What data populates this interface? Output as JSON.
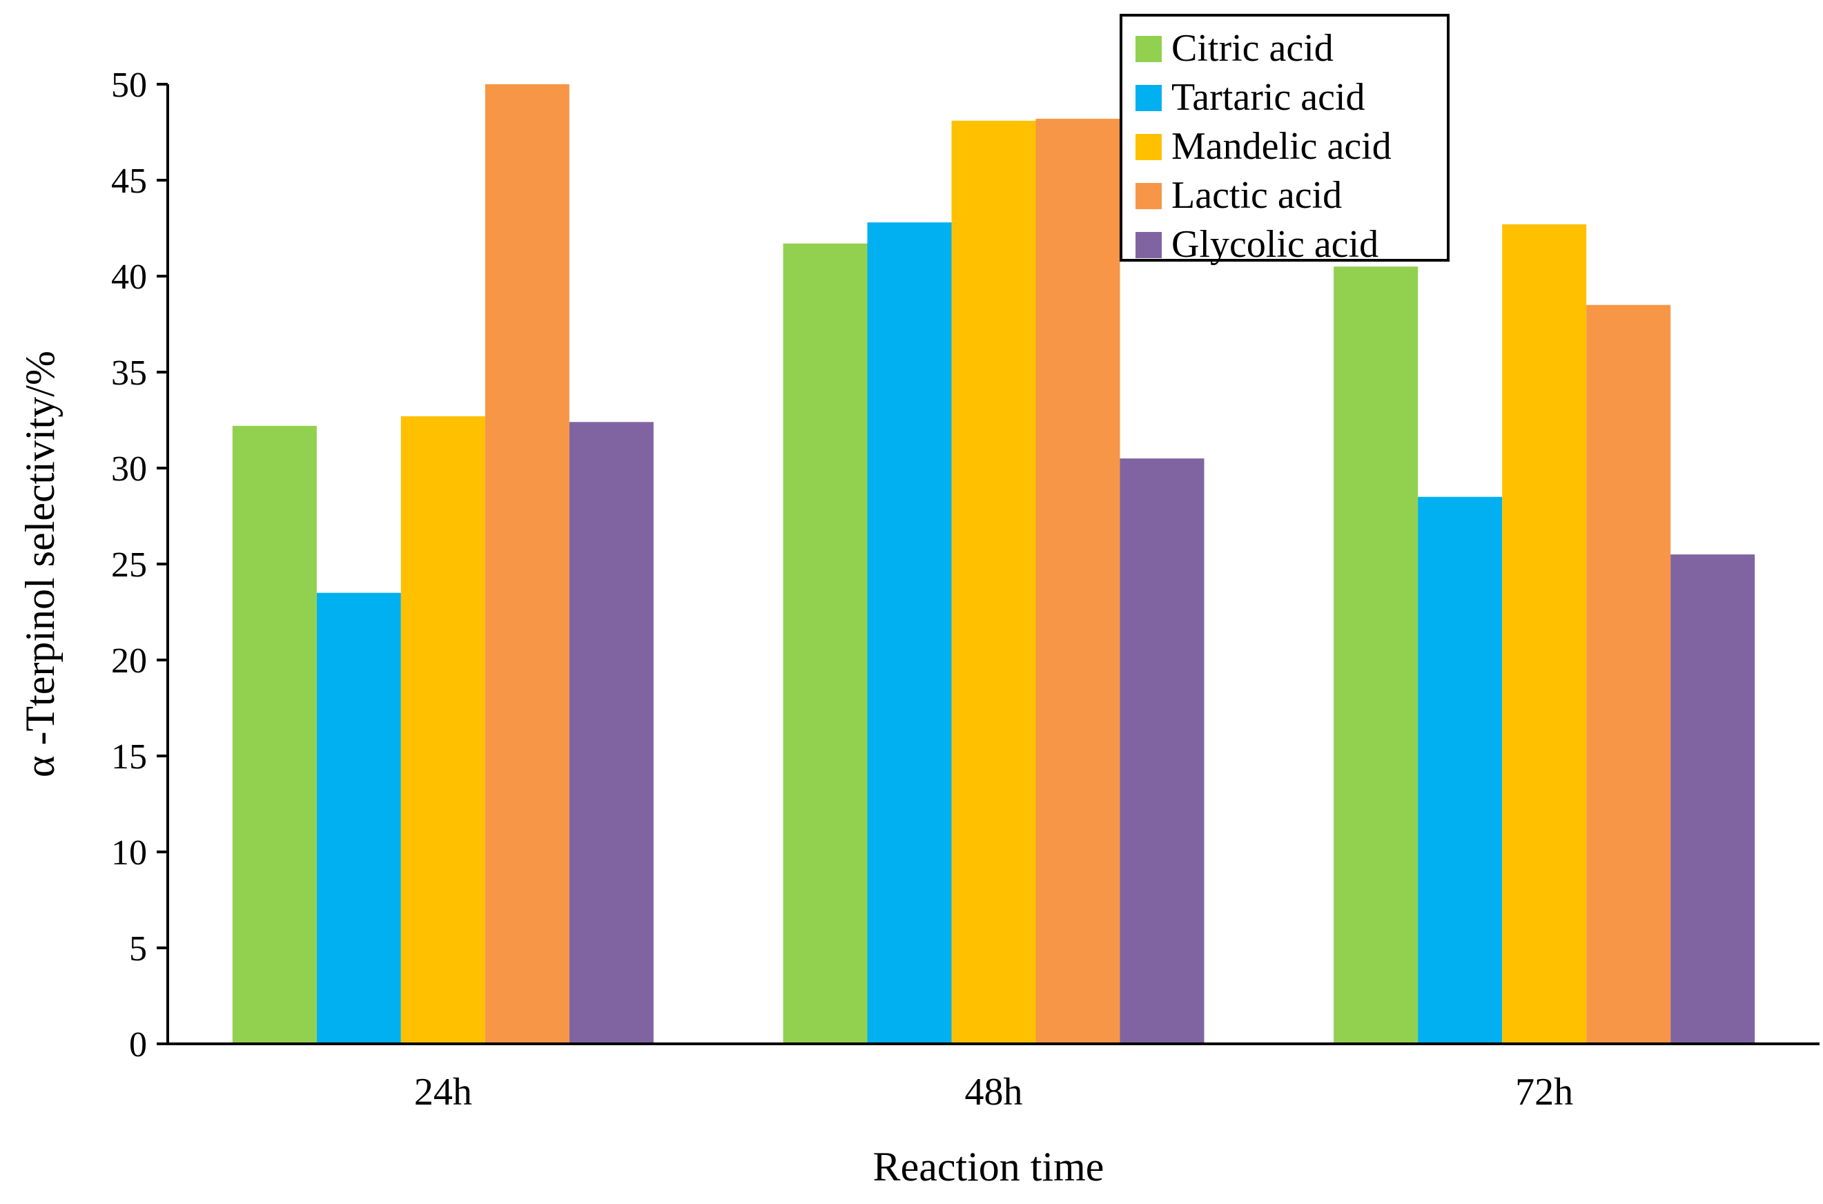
{
  "chart_data": {
    "type": "bar",
    "title": "",
    "xlabel": "Reaction time",
    "ylabel": "α -Tterpinol selectivity/%",
    "ylim": [
      0,
      50
    ],
    "yticks": [
      0,
      5,
      10,
      15,
      20,
      25,
      30,
      35,
      40,
      45,
      50
    ],
    "categories": [
      "24h",
      "48h",
      "72h"
    ],
    "legend_position": "top-right",
    "grid": false,
    "series": [
      {
        "name": "Citric acid",
        "color": "#92D050",
        "values": [
          32.2,
          41.7,
          40.5
        ]
      },
      {
        "name": "Tartaric acid",
        "color": "#00B0F0",
        "values": [
          23.5,
          42.8,
          28.5
        ]
      },
      {
        "name": "Mandelic acid",
        "color": "#FFC000",
        "values": [
          32.7,
          48.1,
          42.7
        ]
      },
      {
        "name": "Lactic acid",
        "color": "#F79646",
        "values": [
          50.0,
          48.2,
          38.5
        ]
      },
      {
        "name": "Glycolic acid",
        "color": "#8064A2",
        "values": [
          32.4,
          30.5,
          25.5
        ]
      }
    ]
  }
}
